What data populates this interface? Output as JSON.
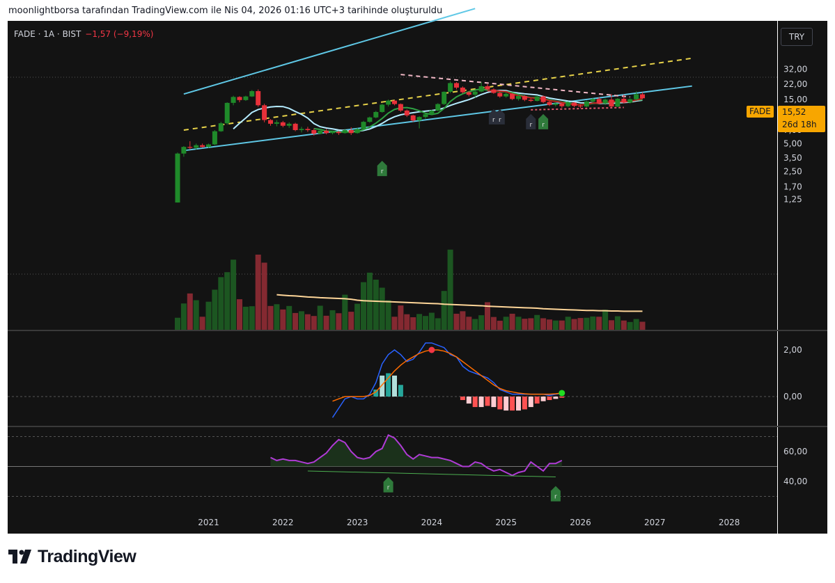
{
  "caption": "moonlightborsa tarafından TradingView.com ile Nis 04, 2026 01:16 UTC+3 tarihinde oluşturuldu",
  "legend": {
    "symbol": "FADE · 1A · BIST",
    "change": "−1,57 (−9,19%)"
  },
  "currency": "TRY",
  "last_price": {
    "ticker": "FADE",
    "value": "15,52",
    "countdown": "26d 18h"
  },
  "brand": "TradingView",
  "badge_letter": "r",
  "colors": {
    "up": "#1f8a2a",
    "down": "#e8313a",
    "channel": "#5fc8e6",
    "ma_green": "#2ea043",
    "ma_red": "#b91c1c",
    "ma_light": "#b4ecff",
    "dashed_yellow": "#e8d34a",
    "dashed_pink": "#f2b8c6",
    "rsi": "#b03bd6",
    "macd": "#2962ff",
    "signal": "#ff6d00",
    "accent": "#f7a600"
  },
  "chart_data": [
    {
      "type": "candlestick",
      "panel": "price",
      "yscale": "log",
      "yticks": [
        "32,00",
        "22,00",
        "15,00",
        "10,00",
        "7,00",
        "5,00",
        "3,50",
        "2,50",
        "1,70",
        "1,25"
      ],
      "ytick_values": [
        32,
        22,
        15,
        10,
        7,
        5,
        3.5,
        2.5,
        1.7,
        1.25
      ],
      "xticks": [
        "2021",
        "2022",
        "2023",
        "2024",
        "2025",
        "2026",
        "2027",
        "2028"
      ],
      "x_start": "2020-08",
      "candles": [
        [
          1.15,
          4.0,
          1.15,
          3.9
        ],
        [
          3.9,
          4.7,
          3.6,
          4.6
        ],
        [
          4.6,
          5.3,
          4.3,
          4.5
        ],
        [
          4.5,
          5.0,
          4.3,
          4.8
        ],
        [
          4.8,
          5.0,
          4.5,
          4.6
        ],
        [
          4.6,
          5.0,
          4.5,
          4.9
        ],
        [
          4.9,
          7.0,
          4.8,
          6.8
        ],
        [
          6.8,
          8.6,
          6.7,
          8.3
        ],
        [
          8.3,
          14.0,
          8.0,
          13.8
        ],
        [
          13.8,
          16.5,
          13.0,
          16.0
        ],
        [
          16.0,
          16.3,
          14.0,
          14.8
        ],
        [
          14.8,
          16.5,
          14.5,
          16.2
        ],
        [
          16.2,
          19.0,
          16.0,
          18.5
        ],
        [
          18.5,
          19.3,
          12.5,
          13.0
        ],
        [
          13.0,
          13.5,
          8.5,
          9.0
        ],
        [
          9.0,
          9.2,
          7.8,
          8.2
        ],
        [
          8.2,
          9.0,
          7.7,
          8.5
        ],
        [
          8.5,
          8.8,
          7.5,
          7.8
        ],
        [
          7.8,
          8.5,
          7.4,
          8.2
        ],
        [
          8.2,
          8.4,
          6.8,
          7.0
        ],
        [
          7.0,
          7.6,
          6.6,
          7.2
        ],
        [
          7.2,
          7.6,
          6.7,
          7.0
        ],
        [
          7.0,
          7.3,
          6.1,
          6.4
        ],
        [
          6.4,
          7.2,
          6.3,
          6.9
        ],
        [
          6.9,
          7.2,
          6.3,
          6.5
        ],
        [
          6.5,
          6.9,
          6.3,
          6.7
        ],
        [
          6.7,
          6.9,
          6.2,
          6.5
        ],
        [
          6.5,
          7.2,
          6.4,
          7.0
        ],
        [
          7.0,
          7.5,
          6.2,
          6.5
        ],
        [
          6.5,
          7.4,
          6.4,
          7.2
        ],
        [
          7.2,
          8.8,
          7.1,
          8.6
        ],
        [
          8.6,
          9.8,
          8.4,
          9.6
        ],
        [
          9.6,
          11.3,
          9.4,
          11.0
        ],
        [
          11.0,
          13.5,
          10.8,
          13.2
        ],
        [
          13.2,
          15.0,
          12.6,
          14.6
        ],
        [
          14.6,
          14.8,
          13.0,
          13.4
        ],
        [
          13.4,
          13.6,
          11.0,
          11.4
        ],
        [
          11.4,
          11.7,
          9.7,
          10.1
        ],
        [
          10.1,
          10.3,
          8.6,
          8.9
        ],
        [
          8.9,
          9.9,
          7.3,
          9.7
        ],
        [
          9.7,
          10.6,
          9.3,
          10.4
        ],
        [
          10.4,
          11.6,
          10.2,
          11.4
        ],
        [
          11.4,
          13.7,
          11.2,
          13.4
        ],
        [
          13.4,
          18.4,
          13.1,
          18.2
        ],
        [
          18.2,
          23.5,
          17.6,
          22.6
        ],
        [
          22.6,
          23.2,
          19.3,
          20.2
        ],
        [
          20.2,
          20.8,
          17.4,
          18.0
        ],
        [
          18.0,
          18.5,
          16.2,
          16.9
        ],
        [
          16.9,
          18.8,
          15.6,
          18.3
        ],
        [
          18.3,
          23.2,
          18.0,
          20.9
        ],
        [
          20.9,
          22.0,
          18.8,
          19.3
        ],
        [
          19.3,
          19.8,
          17.3,
          17.7
        ],
        [
          17.7,
          18.2,
          15.7,
          16.2
        ],
        [
          16.2,
          17.9,
          15.7,
          17.3
        ],
        [
          17.3,
          17.6,
          14.8,
          15.2
        ],
        [
          15.2,
          16.9,
          14.6,
          16.4
        ],
        [
          16.4,
          16.7,
          14.4,
          14.9
        ],
        [
          14.9,
          15.5,
          14.1,
          14.5
        ],
        [
          14.5,
          16.6,
          14.3,
          16.2
        ],
        [
          16.2,
          16.6,
          13.7,
          14.1
        ],
        [
          14.1,
          14.4,
          12.7,
          13.1
        ],
        [
          13.1,
          14.1,
          12.6,
          13.6
        ],
        [
          13.6,
          13.9,
          12.2,
          12.7
        ],
        [
          12.7,
          14.3,
          12.4,
          13.9
        ],
        [
          13.9,
          14.1,
          12.4,
          12.8
        ],
        [
          12.8,
          13.3,
          12.1,
          12.6
        ],
        [
          12.6,
          14.6,
          12.3,
          14.3
        ],
        [
          14.3,
          15.6,
          13.8,
          15.2
        ],
        [
          15.2,
          15.9,
          13.3,
          13.6
        ],
        [
          13.6,
          15.3,
          13.1,
          15.0
        ],
        [
          15.0,
          17.2,
          12.3,
          12.6
        ],
        [
          12.6,
          15.6,
          12.4,
          15.3
        ],
        [
          15.3,
          17.0,
          13.6,
          13.9
        ],
        [
          13.9,
          15.5,
          13.6,
          15.1
        ],
        [
          15.1,
          18.4,
          14.5,
          17.1
        ],
        [
          17.1,
          18.0,
          15.2,
          15.5
        ]
      ],
      "volume": [
        48,
        105,
        145,
        118,
        52,
        112,
        160,
        210,
        230,
        280,
        122,
        92,
        94,
        300,
        268,
        95,
        102,
        81,
        95,
        67,
        74,
        62,
        55,
        96,
        56,
        78,
        66,
        140,
        72,
        104,
        190,
        228,
        200,
        168,
        118,
        52,
        97,
        62,
        50,
        63,
        55,
        68,
        46,
        155,
        320,
        64,
        74,
        52,
        43,
        58,
        110,
        51,
        36,
        52,
        64,
        52,
        44,
        46,
        59,
        46,
        41,
        37,
        37,
        52,
        43,
        47,
        48,
        53,
        52,
        80,
        38,
        54,
        37,
        31,
        43,
        32
      ],
      "volume_ma": [
        140,
        138,
        136,
        135,
        133,
        131,
        130,
        128,
        127,
        126,
        125,
        124,
        122,
        118,
        116,
        115,
        114,
        113,
        112,
        111,
        110,
        109,
        108,
        107,
        106,
        105,
        104,
        102,
        101,
        100,
        99,
        98,
        97,
        96,
        94,
        93,
        92,
        91,
        90,
        89,
        88,
        87,
        86,
        84,
        83,
        82,
        81,
        80,
        79,
        78,
        77,
        77,
        76,
        76,
        75,
        75,
        74,
        74,
        74,
        74
      ],
      "channel_upper": {
        "from": [
          "2020-09",
          17.2
        ],
        "to": [
          "2024-08",
          145
        ]
      },
      "channel_lower": {
        "from": [
          "2020-09",
          4.2
        ],
        "to": [
          "2027-07",
          21.0
        ]
      },
      "dashed_midline": {
        "from": [
          "2020-09",
          7.0
        ],
        "to": [
          "2027-07",
          42.0
        ]
      },
      "dashed_resistance": {
        "from": [
          "2023-08",
          28.0
        ],
        "to": [
          "2026-09",
          16.0
        ]
      },
      "badges": [
        {
          "date": "2023-05",
          "price": 6.3
        },
        {
          "date": "2024-11",
          "price": 11.4
        },
        {
          "date": "2024-12",
          "price": 11.4
        },
        {
          "date": "2025-05",
          "price": 10.1
        },
        {
          "date": "2025-07",
          "price": 10.1
        }
      ]
    },
    {
      "type": "line",
      "panel": "macd",
      "yticks": [
        "2,00",
        "0,00"
      ],
      "ytick_values": [
        2,
        0
      ],
      "ylim": [
        -1.0,
        2.5
      ],
      "x_start": "2022-09",
      "series": [
        {
          "values": [
            -0.9,
            -0.5,
            -0.1,
            0.0,
            -0.1,
            -0.1,
            0.1,
            0.6,
            1.4,
            1.8,
            2.0,
            1.8,
            1.5,
            1.6,
            1.9,
            2.3,
            2.3,
            2.2,
            2.1,
            1.8,
            1.7,
            1.3,
            1.1,
            1.0,
            0.9,
            0.8,
            0.6,
            0.3,
            0.2,
            0.1,
            0.1,
            0.1,
            0.1,
            0.1,
            0.1,
            0.05,
            0.1,
            0.15
          ]
        },
        {
          "values": [
            -0.2,
            -0.1,
            0.0,
            0.0,
            0.0,
            0.0,
            0.05,
            0.2,
            0.5,
            0.8,
            1.1,
            1.35,
            1.55,
            1.7,
            1.85,
            1.95,
            2.0,
            2.0,
            1.95,
            1.85,
            1.7,
            1.5,
            1.3,
            1.1,
            0.9,
            0.7,
            0.5,
            0.35,
            0.25,
            0.2,
            0.15,
            0.12,
            0.1,
            0.1,
            0.1,
            0.1,
            0.12,
            0.15
          ]
        }
      ],
      "histogram": [
        0.0,
        0.0,
        0.0,
        0.0,
        0.0,
        0.0,
        0.0,
        0.3,
        0.9,
        1.0,
        0.9,
        0.5,
        0.0,
        0.0,
        0.0,
        0.0,
        0.0,
        0.0,
        0.0,
        0.0,
        0.0,
        -0.15,
        -0.3,
        -0.45,
        -0.45,
        -0.4,
        -0.45,
        -0.55,
        -0.6,
        -0.6,
        -0.6,
        -0.55,
        -0.45,
        -0.3,
        -0.2,
        -0.15,
        -0.1,
        -0.05
      ]
    },
    {
      "type": "line",
      "panel": "rsi",
      "yticks": [
        "60,00",
        "40,00"
      ],
      "ytick_values": [
        60,
        40
      ],
      "ylim": [
        20,
        80
      ],
      "x_start": "2021-11",
      "values": [
        56,
        54,
        55,
        54,
        54,
        53,
        52,
        53,
        56,
        59,
        64,
        68,
        66,
        60,
        56,
        55,
        56,
        60,
        62,
        71,
        69,
        64,
        58,
        55,
        58,
        57,
        56,
        56,
        55,
        54,
        52,
        50,
        50,
        53,
        52,
        49,
        47,
        48,
        46,
        44,
        46,
        47,
        53,
        50,
        47,
        52,
        52,
        54
      ]
    }
  ]
}
